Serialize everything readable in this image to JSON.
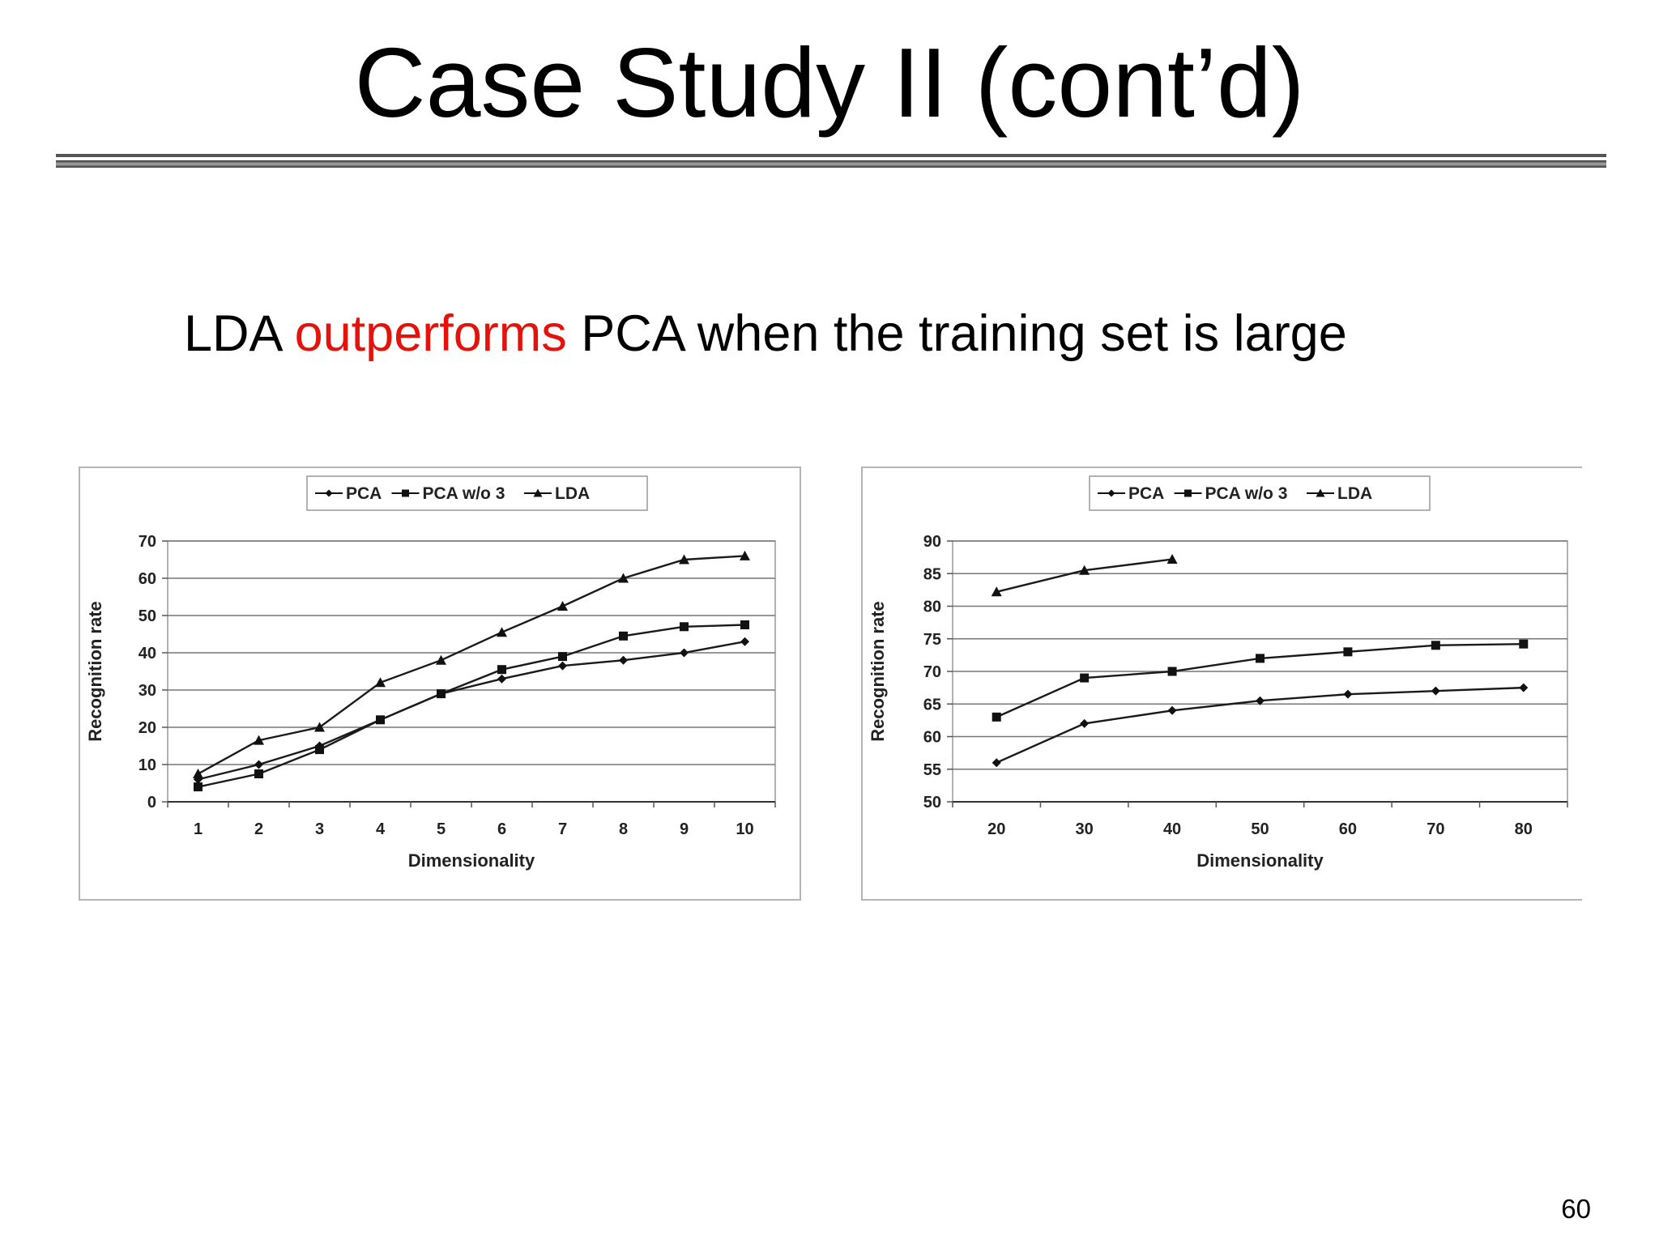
{
  "slide": {
    "title": "Case Study II (cont’d)",
    "subtitle_pre": "LDA ",
    "subtitle_highlight": "outperforms",
    "subtitle_post": " PCA when the training set is large",
    "highlight_color": "#e3120b",
    "page_number": "60"
  },
  "chart_data": [
    {
      "type": "line",
      "title": "",
      "xlabel": "Dimensionality",
      "ylabel": "Recognition rate",
      "categories": [
        "1",
        "2",
        "3",
        "4",
        "5",
        "6",
        "7",
        "8",
        "9",
        "10"
      ],
      "ylim": [
        0,
        70
      ],
      "yticks": [
        0,
        10,
        20,
        30,
        40,
        50,
        60,
        70
      ],
      "grid": true,
      "legend_position": "top",
      "series": [
        {
          "name": "PCA",
          "marker": "diamond",
          "values": [
            6,
            10,
            15,
            22,
            29,
            33,
            36.5,
            38,
            40,
            43
          ]
        },
        {
          "name": "PCA w/o 3",
          "marker": "square",
          "values": [
            4,
            7.5,
            14,
            22,
            29,
            35.5,
            39,
            44.5,
            47,
            47.5
          ]
        },
        {
          "name": "LDA",
          "marker": "triangle",
          "values": [
            7.5,
            16.5,
            20,
            32,
            38,
            45.5,
            52.5,
            60,
            65,
            66
          ]
        }
      ]
    },
    {
      "type": "line",
      "title": "",
      "xlabel": "Dimensionality",
      "ylabel": "Recognition rate",
      "categories": [
        "20",
        "30",
        "40",
        "50",
        "60",
        "70",
        "80"
      ],
      "ylim": [
        50,
        90
      ],
      "yticks": [
        50,
        55,
        60,
        65,
        70,
        75,
        80,
        85,
        90
      ],
      "grid": true,
      "legend_position": "top",
      "series": [
        {
          "name": "PCA",
          "marker": "diamond",
          "values": [
            56,
            62,
            64,
            65.5,
            66.5,
            67,
            67.5
          ]
        },
        {
          "name": "PCA w/o 3",
          "marker": "square",
          "values": [
            63,
            69,
            70,
            72,
            73,
            74,
            74.2
          ]
        },
        {
          "name": "LDA",
          "marker": "triangle",
          "values": [
            82.2,
            85.5,
            87.2,
            null,
            null,
            null,
            null
          ]
        }
      ]
    }
  ]
}
